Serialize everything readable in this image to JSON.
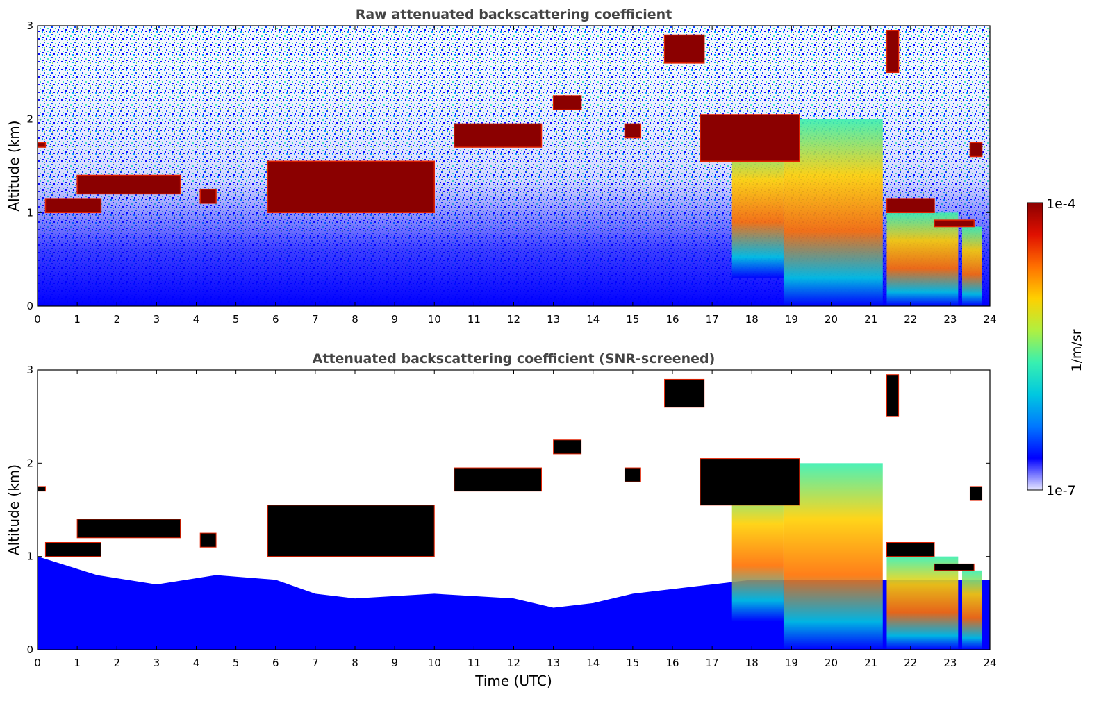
{
  "figure": {
    "colorbar": {
      "label": "1/m/sr",
      "max_label": "1e-4",
      "min_label": "1e-7",
      "scale": "log",
      "range": [
        1e-07,
        0.0001
      ],
      "colormap": "jet",
      "colors": [
        "#e8e8ff",
        "#0000ff",
        "#0078ff",
        "#00c8e0",
        "#38f0b0",
        "#b0f040",
        "#ffd000",
        "#ff7000",
        "#e01000",
        "#8b0000"
      ]
    }
  },
  "chart_data": [
    {
      "type": "heatmap",
      "title": "Raw attenuated backscattering coefficient",
      "xlabel": "",
      "ylabel": "Altitude (km)",
      "xlim": [
        0,
        24
      ],
      "ylim": [
        0,
        3
      ],
      "xticks": [
        "0",
        "1",
        "2",
        "3",
        "4",
        "5",
        "6",
        "7",
        "8",
        "9",
        "10",
        "11",
        "12",
        "13",
        "14",
        "15",
        "16",
        "17",
        "18",
        "19",
        "20",
        "21",
        "22",
        "23",
        "24"
      ],
      "yticks": [
        "0",
        "1",
        "2",
        "3"
      ],
      "cloud_layers": [
        {
          "time": [
            0.0,
            0.2
          ],
          "altitude_km": [
            1.7,
            1.75
          ],
          "value": 0.0001
        },
        {
          "time": [
            0.2,
            1.6
          ],
          "altitude_km": [
            1.0,
            1.15
          ],
          "value": 0.0001
        },
        {
          "time": [
            1.0,
            3.6
          ],
          "altitude_km": [
            1.2,
            1.4
          ],
          "value": 0.0001
        },
        {
          "time": [
            4.1,
            4.5
          ],
          "altitude_km": [
            1.1,
            1.25
          ],
          "value": 0.0001
        },
        {
          "time": [
            5.8,
            10.0
          ],
          "altitude_km": [
            1.0,
            1.55
          ],
          "value": 0.0001
        },
        {
          "time": [
            10.5,
            12.7
          ],
          "altitude_km": [
            1.7,
            1.95
          ],
          "value": 0.0001
        },
        {
          "time": [
            13.0,
            13.7
          ],
          "altitude_km": [
            2.1,
            2.25
          ],
          "value": 0.0001
        },
        {
          "time": [
            14.8,
            15.2
          ],
          "altitude_km": [
            1.8,
            1.95
          ],
          "value": 0.0001
        },
        {
          "time": [
            15.8,
            16.8
          ],
          "altitude_km": [
            2.6,
            2.9
          ],
          "value": 0.0001
        },
        {
          "time": [
            16.7,
            19.2
          ],
          "altitude_km": [
            1.55,
            2.05
          ],
          "value": 0.0001
        },
        {
          "time": [
            21.4,
            21.7
          ],
          "altitude_km": [
            2.5,
            2.95
          ],
          "value": 0.0001
        },
        {
          "time": [
            21.4,
            22.6
          ],
          "altitude_km": [
            1.0,
            1.15
          ],
          "value": 0.0001
        },
        {
          "time": [
            22.6,
            23.6
          ],
          "altitude_km": [
            0.85,
            0.92
          ],
          "value": 0.0001
        },
        {
          "time": [
            23.5,
            23.8
          ],
          "altitude_km": [
            1.6,
            1.75
          ],
          "value": 0.0001
        }
      ],
      "precipitation_streaks": [
        {
          "time": [
            17.5,
            18.8
          ],
          "altitude_km": [
            0.3,
            1.8
          ],
          "value": 3e-05
        },
        {
          "time": [
            18.8,
            21.3
          ],
          "altitude_km": [
            0.0,
            2.0
          ],
          "value": 3e-05
        },
        {
          "time": [
            21.4,
            23.2
          ],
          "altitude_km": [
            0.0,
            1.0
          ],
          "value": 2e-05
        },
        {
          "time": [
            23.3,
            23.8
          ],
          "altitude_km": [
            0.0,
            0.85
          ],
          "value": 3e-05
        }
      ]
    },
    {
      "type": "heatmap",
      "title": "Attenuated backscattering coefficient (SNR-screened)",
      "xlabel": "Time (UTC)",
      "ylabel": "Altitude (km)",
      "xlim": [
        0,
        24
      ],
      "ylim": [
        0,
        3
      ],
      "xticks": [
        "0",
        "1",
        "2",
        "3",
        "4",
        "5",
        "6",
        "7",
        "8",
        "9",
        "10",
        "11",
        "12",
        "13",
        "14",
        "15",
        "16",
        "17",
        "18",
        "19",
        "20",
        "21",
        "22",
        "23",
        "24"
      ],
      "yticks": [
        "0",
        "1",
        "2",
        "3"
      ],
      "saturated_color": "#000000",
      "boundary_layer_top_km": [
        [
          0,
          1.0
        ],
        [
          1.5,
          0.8
        ],
        [
          3,
          0.7
        ],
        [
          4.5,
          0.8
        ],
        [
          6,
          0.75
        ],
        [
          7,
          0.6
        ],
        [
          8,
          0.55
        ],
        [
          10,
          0.6
        ],
        [
          12,
          0.55
        ],
        [
          13,
          0.45
        ],
        [
          14,
          0.5
        ],
        [
          15,
          0.6
        ],
        [
          16,
          0.65
        ],
        [
          17,
          0.7
        ],
        [
          18,
          0.75
        ]
      ]
    }
  ]
}
